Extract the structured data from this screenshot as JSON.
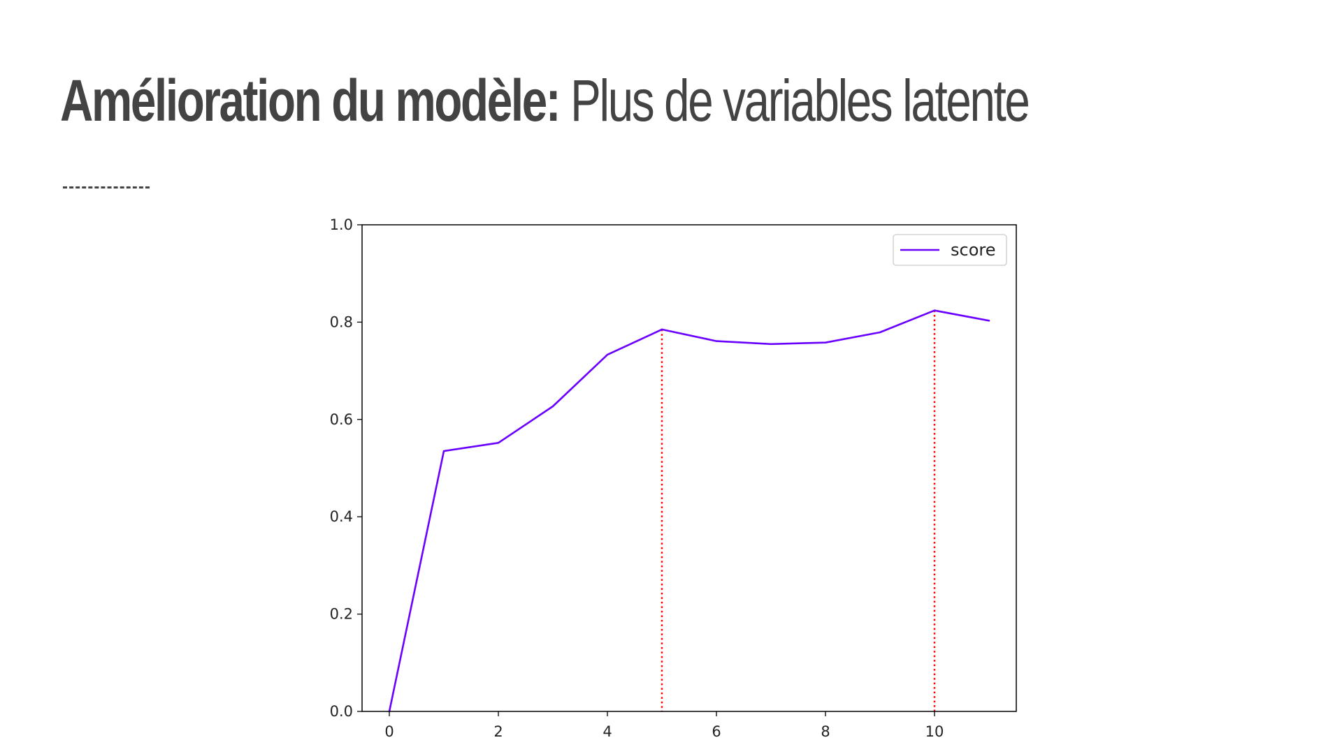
{
  "slide": {
    "title_bold": "Amélioration du modèle:",
    "title_light": "Plus de variables latente"
  },
  "colors": {
    "title": "#434343",
    "series": "#6a00ff",
    "marker_lines": "#ff0000"
  },
  "chart_data": {
    "type": "line",
    "title": "",
    "xlabel": "",
    "ylabel": "",
    "xlim": [
      -0.5,
      11.5
    ],
    "ylim": [
      0.0,
      1.0
    ],
    "xticks": [
      0,
      2,
      4,
      6,
      8,
      10
    ],
    "xtick_labels": [
      "0",
      "2",
      "4",
      "6",
      "8",
      "10"
    ],
    "yticks": [
      0.0,
      0.2,
      0.4,
      0.6,
      0.8,
      1.0
    ],
    "ytick_labels": [
      "0.0",
      "0.2",
      "0.4",
      "0.6",
      "0.8",
      "1.0"
    ],
    "grid": false,
    "legend_position": "top-right",
    "series": [
      {
        "name": "score",
        "x": [
          0,
          1,
          2,
          3,
          4,
          5,
          6,
          7,
          8,
          9,
          10,
          11
        ],
        "values": [
          0.0,
          0.535,
          0.552,
          0.627,
          0.733,
          0.785,
          0.761,
          0.755,
          0.758,
          0.779,
          0.824,
          0.803
        ]
      }
    ],
    "vertical_markers": [
      {
        "x": 5,
        "y": 0.785,
        "style": "dotted"
      },
      {
        "x": 10,
        "y": 0.824,
        "style": "dotted"
      }
    ]
  }
}
